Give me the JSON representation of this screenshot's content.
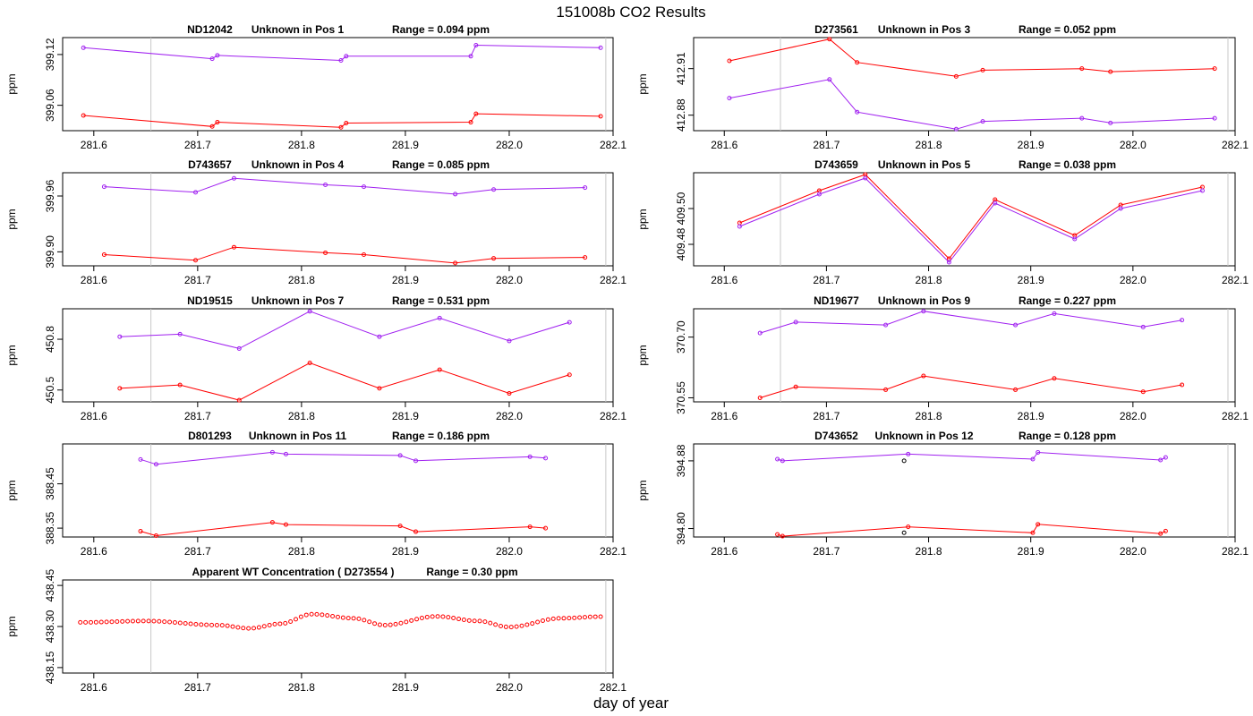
{
  "figure": {
    "title": "151008b  CO2 Results",
    "xlabel": "day of year"
  },
  "chart_data": [
    {
      "type": "line",
      "title_id": "ND12042",
      "title_pos": "Unknown in Pos 1",
      "title_range": "Range =  0.094 ppm",
      "ylabel": "ppm",
      "xlim": [
        281.57,
        282.1
      ],
      "ylim": [
        399.03,
        399.14
      ],
      "x_ticks": [
        "281.6",
        "281.7",
        "281.8",
        "281.9",
        "282.0",
        "282.1"
      ],
      "y_ticks": [
        "399.06",
        "399.12"
      ],
      "vlines": [
        281.655,
        282.093
      ],
      "series": [
        {
          "name": "upper",
          "color": "#a020f0",
          "marker": "circle",
          "x": [
            281.59,
            281.714,
            281.719,
            281.838,
            281.843,
            281.963,
            281.968,
            282.088
          ],
          "y": [
            399.128,
            399.115,
            399.119,
            399.113,
            399.118,
            399.118,
            399.131,
            399.128
          ]
        },
        {
          "name": "lower",
          "color": "#ff0000",
          "marker": "circle",
          "x": [
            281.59,
            281.714,
            281.719,
            281.838,
            281.843,
            281.963,
            281.968,
            282.088
          ],
          "y": [
            399.048,
            399.035,
            399.04,
            399.034,
            399.039,
            399.04,
            399.05,
            399.047
          ]
        }
      ]
    },
    {
      "type": "line",
      "title_id": "D273561",
      "title_pos": "Unknown in Pos 3",
      "title_range": "Range =  0.052 ppm",
      "ylabel": "ppm",
      "xlim": [
        281.57,
        282.1
      ],
      "ylim": [
        412.87,
        412.93
      ],
      "x_ticks": [
        "281.6",
        "281.7",
        "281.8",
        "281.9",
        "282.0",
        "282.1"
      ],
      "y_ticks": [
        "412.88",
        "412.91"
      ],
      "vlines": [
        281.655,
        282.093
      ],
      "series": [
        {
          "name": "upper",
          "color": "#ff0000",
          "marker": "circle",
          "x": [
            281.605,
            281.703,
            281.73,
            281.827,
            281.853,
            281.95,
            281.978,
            282.08
          ],
          "y": [
            412.915,
            412.929,
            412.914,
            412.905,
            412.909,
            412.91,
            412.908,
            412.91
          ]
        },
        {
          "name": "lower",
          "color": "#a020f0",
          "marker": "circle",
          "x": [
            281.605,
            281.703,
            281.73,
            281.827,
            281.853,
            281.95,
            281.978,
            282.08
          ],
          "y": [
            412.891,
            412.903,
            412.882,
            412.871,
            412.876,
            412.878,
            412.875,
            412.878
          ]
        }
      ]
    },
    {
      "type": "line",
      "title_id": "D743657",
      "title_pos": "Unknown in Pos 4",
      "title_range": "Range =  0.085 ppm",
      "ylabel": "ppm",
      "xlim": [
        281.57,
        282.1
      ],
      "ylim": [
        399.885,
        399.985
      ],
      "x_ticks": [
        "281.6",
        "281.7",
        "281.8",
        "281.9",
        "282.0",
        "282.1"
      ],
      "y_ticks": [
        "399.90",
        "399.96"
      ],
      "vlines": [
        281.655,
        282.093
      ],
      "series": [
        {
          "name": "upper",
          "color": "#a020f0",
          "marker": "circle",
          "x": [
            281.61,
            281.698,
            281.735,
            281.823,
            281.86,
            281.948,
            281.985,
            282.073
          ],
          "y": [
            399.97,
            399.964,
            399.979,
            399.972,
            399.97,
            399.962,
            399.967,
            399.969
          ]
        },
        {
          "name": "lower",
          "color": "#ff0000",
          "marker": "circle",
          "x": [
            281.61,
            281.698,
            281.735,
            281.823,
            281.86,
            281.948,
            281.985,
            282.073
          ],
          "y": [
            399.897,
            399.891,
            399.905,
            399.899,
            399.897,
            399.888,
            399.893,
            399.894
          ]
        }
      ]
    },
    {
      "type": "line",
      "title_id": "D743659",
      "title_pos": "Unknown in Pos 5",
      "title_range": "Range =  0.038 ppm",
      "ylabel": "ppm",
      "xlim": [
        281.57,
        282.1
      ],
      "ylim": [
        409.468,
        409.52
      ],
      "x_ticks": [
        "281.6",
        "281.7",
        "281.8",
        "281.9",
        "282.0",
        "282.1"
      ],
      "y_ticks": [
        "409.48",
        "409.50"
      ],
      "vlines": [
        281.655,
        282.093
      ],
      "series": [
        {
          "name": "upper",
          "color": "#ff0000",
          "marker": "circle",
          "x": [
            281.615,
            281.693,
            281.738,
            281.82,
            281.865,
            281.943,
            281.988,
            282.068
          ],
          "y": [
            409.492,
            409.51,
            409.519,
            409.472,
            409.505,
            409.485,
            409.502,
            409.512
          ]
        },
        {
          "name": "lower",
          "color": "#a020f0",
          "marker": "circle",
          "x": [
            281.615,
            281.693,
            281.738,
            281.82,
            281.865,
            281.943,
            281.988,
            282.068
          ],
          "y": [
            409.49,
            409.508,
            409.517,
            409.47,
            409.503,
            409.483,
            409.5,
            409.51
          ]
        }
      ]
    },
    {
      "type": "line",
      "title_id": "ND19515",
      "title_pos": "Unknown in Pos 7",
      "title_range": "Range =  0.531 ppm",
      "ylabel": "ppm",
      "xlim": [
        281.57,
        282.1
      ],
      "ylim": [
        450.43,
        450.98
      ],
      "x_ticks": [
        "281.6",
        "281.7",
        "281.8",
        "281.9",
        "282.0",
        "282.1"
      ],
      "y_ticks": [
        "450.5",
        "450.8"
      ],
      "vlines": [
        281.655,
        282.093
      ],
      "series": [
        {
          "name": "upper",
          "color": "#a020f0",
          "marker": "circle",
          "x": [
            281.625,
            281.683,
            281.74,
            281.808,
            281.875,
            281.933,
            282.0,
            282.058
          ],
          "y": [
            450.815,
            450.83,
            450.745,
            450.965,
            450.815,
            450.925,
            450.79,
            450.9
          ]
        },
        {
          "name": "lower",
          "color": "#ff0000",
          "marker": "circle",
          "x": [
            281.625,
            281.683,
            281.74,
            281.808,
            281.875,
            281.933,
            282.0,
            282.058
          ],
          "y": [
            450.51,
            450.53,
            450.44,
            450.66,
            450.51,
            450.62,
            450.48,
            450.59
          ]
        }
      ]
    },
    {
      "type": "line",
      "title_id": "ND19677",
      "title_pos": "Unknown in Pos 9",
      "title_range": "Range =  0.227 ppm",
      "ylabel": "ppm",
      "xlim": [
        281.57,
        282.1
      ],
      "ylim": [
        370.54,
        370.77
      ],
      "x_ticks": [
        "281.6",
        "281.7",
        "281.8",
        "281.9",
        "282.0",
        "282.1"
      ],
      "y_ticks": [
        "370.55",
        "370.70"
      ],
      "vlines": [
        281.655,
        282.093
      ],
      "series": [
        {
          "name": "upper",
          "color": "#a020f0",
          "marker": "circle",
          "x": [
            281.635,
            281.67,
            281.758,
            281.795,
            281.885,
            281.923,
            282.01,
            282.048
          ],
          "y": [
            370.71,
            370.737,
            370.73,
            370.764,
            370.73,
            370.758,
            370.725,
            370.742
          ]
        },
        {
          "name": "lower",
          "color": "#ff0000",
          "marker": "circle",
          "x": [
            281.635,
            281.67,
            281.758,
            281.795,
            281.885,
            281.923,
            282.01,
            282.048
          ],
          "y": [
            370.55,
            370.577,
            370.57,
            370.604,
            370.57,
            370.598,
            370.565,
            370.582
          ]
        }
      ]
    },
    {
      "type": "line",
      "title_id": "D801293",
      "title_pos": "Unknown in Pos 11",
      "title_range": "Range =  0.186 ppm",
      "ylabel": "ppm",
      "xlim": [
        281.57,
        282.1
      ],
      "ylim": [
        388.33,
        388.54
      ],
      "x_ticks": [
        "281.6",
        "281.7",
        "281.8",
        "281.9",
        "282.0",
        "282.1"
      ],
      "y_ticks": [
        "388.35",
        "388.45"
      ],
      "vlines": [
        281.655,
        282.093
      ],
      "series": [
        {
          "name": "upper",
          "color": "#a020f0",
          "marker": "circle",
          "x": [
            281.645,
            281.66,
            281.772,
            281.785,
            281.895,
            281.91,
            282.02,
            282.035
          ],
          "y": [
            388.505,
            388.494,
            388.521,
            388.517,
            388.514,
            388.502,
            388.511,
            388.508
          ]
        },
        {
          "name": "lower",
          "color": "#ff0000",
          "marker": "circle",
          "x": [
            281.645,
            281.66,
            281.772,
            281.785,
            281.895,
            281.91,
            282.02,
            282.035
          ],
          "y": [
            388.343,
            388.333,
            388.363,
            388.358,
            388.355,
            388.342,
            388.353,
            388.35
          ]
        }
      ]
    },
    {
      "type": "line",
      "title_id": "D743652",
      "title_pos": "Unknown in Pos 12",
      "title_range": "Range =  0.128 ppm",
      "ylabel": "ppm",
      "xlim": [
        281.57,
        282.1
      ],
      "ylim": [
        394.79,
        394.9
      ],
      "x_ticks": [
        "281.6",
        "281.7",
        "281.8",
        "281.9",
        "282.0",
        "282.1"
      ],
      "y_ticks": [
        "394.80",
        "394.88"
      ],
      "vlines": [
        282.093
      ],
      "series": [
        {
          "name": "upper",
          "color": "#a020f0",
          "marker": "circle",
          "x": [
            281.652,
            281.657,
            281.78,
            281.902,
            281.907,
            282.027,
            282.032
          ],
          "y": [
            394.882,
            394.88,
            394.888,
            394.882,
            394.89,
            394.881,
            394.884
          ]
        },
        {
          "name": "lower",
          "color": "#ff0000",
          "marker": "circle",
          "x": [
            281.652,
            281.657,
            281.78,
            281.902,
            281.907,
            282.027,
            282.032
          ],
          "y": [
            394.793,
            394.791,
            394.802,
            394.795,
            394.805,
            394.794,
            394.797
          ]
        },
        {
          "name": "reference",
          "color": "#000000",
          "marker": "circle-only",
          "x": [
            281.776,
            281.776
          ],
          "y": [
            394.88,
            394.795
          ]
        }
      ]
    },
    {
      "type": "scatter",
      "title_id": "Apparent WT Concentration ( D273554 )",
      "title_pos": "",
      "title_range": "Range = 0.30 ppm",
      "ylabel": "ppm",
      "xlim": [
        281.57,
        282.1
      ],
      "ylim": [
        438.13,
        438.47
      ],
      "x_ticks": [
        "281.6",
        "281.7",
        "281.8",
        "281.9",
        "282.0",
        "282.1"
      ],
      "y_ticks": [
        "438.15",
        "438.30",
        "438.45"
      ],
      "vlines": [
        281.655,
        282.093
      ],
      "wave": {
        "x_start": 281.587,
        "x_end": 282.088,
        "count": 100,
        "baseline": 438.31,
        "points_y_note": "computed"
      },
      "series": [
        {
          "name": "WT",
          "color": "#ff0000",
          "marker": "circle-only",
          "x": [
            281.587,
            281.65,
            281.72,
            281.75,
            281.78,
            281.81,
            281.85,
            281.88,
            281.93,
            281.97,
            282.0,
            282.05,
            282.088
          ],
          "y": [
            438.315,
            438.32,
            438.305,
            438.293,
            438.31,
            438.345,
            438.33,
            438.305,
            438.337,
            438.32,
            438.298,
            438.33,
            438.336
          ]
        }
      ]
    }
  ]
}
